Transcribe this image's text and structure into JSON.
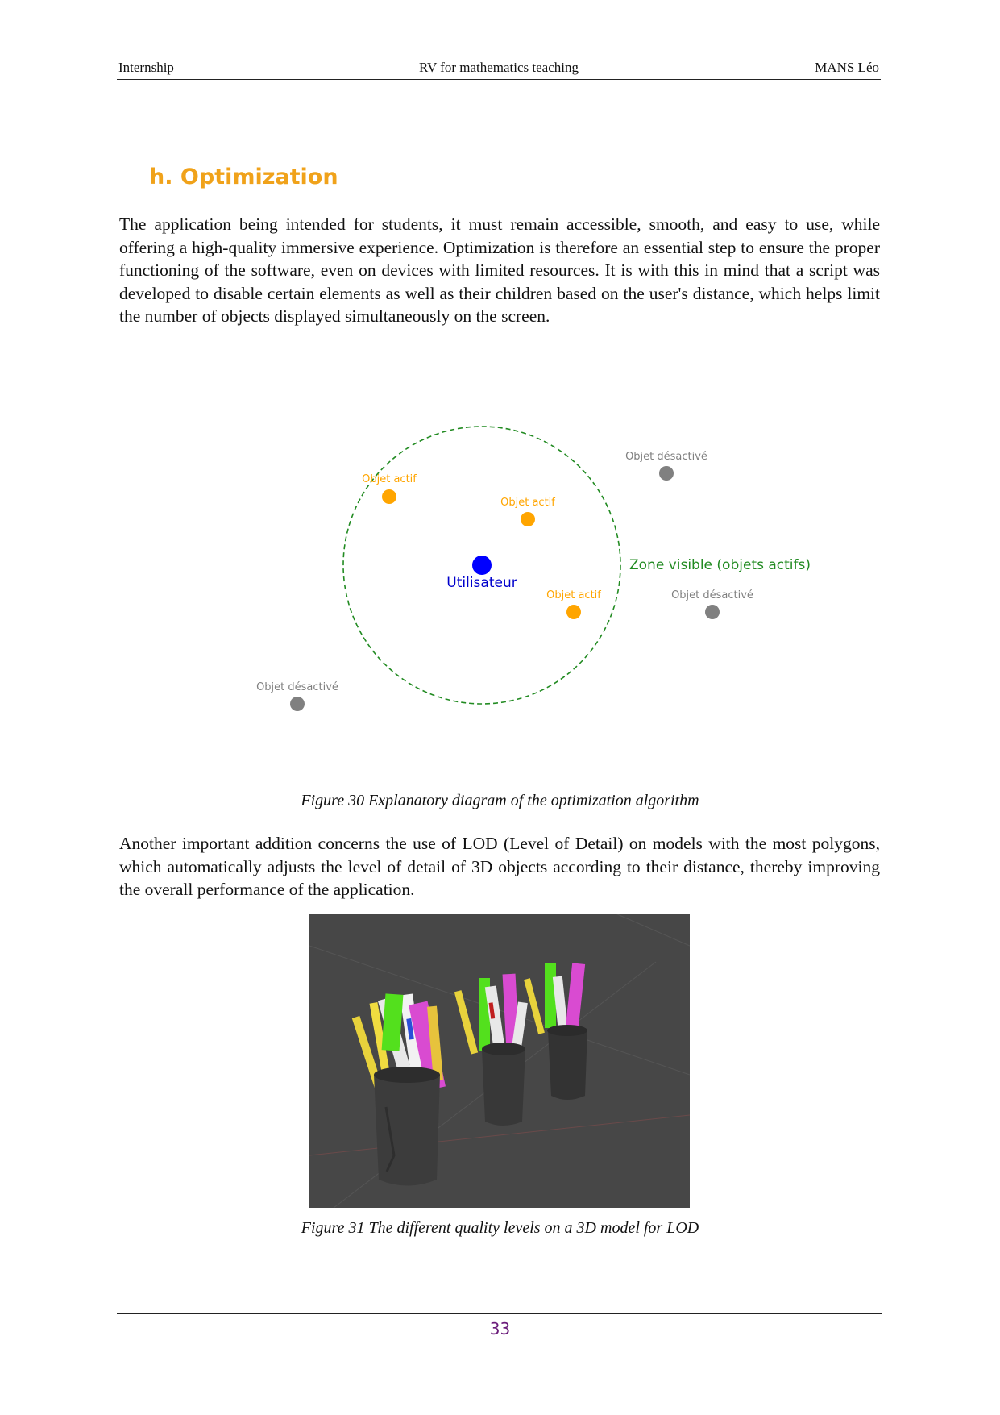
{
  "header": {
    "left": "Internship",
    "center": "RV for mathematics teaching",
    "right": "MANS Léo"
  },
  "section": {
    "title": "h. Optimization"
  },
  "paragraphs": {
    "intro": "The application being intended for students, it must remain accessible, smooth, and easy to use, while offering a high-quality immersive experience. Optimization is therefore an essential step to ensure the proper functioning of the software, even on devices with limited resources. It is with this in mind that a script was developed to disable certain elements as well as their children based on the user's distance, which helps limit the number of objects displayed simultaneously on the screen.",
    "lod": "Another important addition concerns the use of LOD (Level of Detail) on models with the most polygons, which automatically adjusts the level of detail of 3D objects according to their distance, thereby improving the overall performance of the application."
  },
  "diagram": {
    "user_label": "Utilisateur",
    "zone_label": "Zone visible (objets actifs)",
    "active_label": "Objet actif",
    "inactive_label": "Objet désactivé",
    "colors": {
      "user": "#0000ff",
      "active": "#ffa500",
      "inactive": "#808080",
      "zone": "#228b22"
    }
  },
  "captions": {
    "figure30": "Figure 30 Explanatory diagram of the optimization algorithm",
    "figure31": "Figure 31 The different quality levels on a 3D model for LOD"
  },
  "footer": {
    "page_number": "33"
  }
}
